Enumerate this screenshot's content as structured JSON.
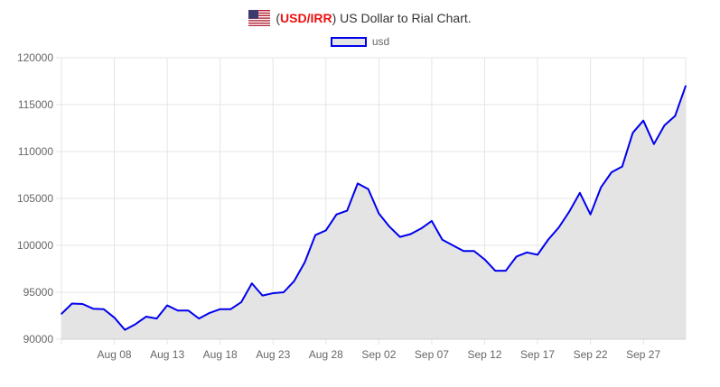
{
  "header": {
    "flag_icon": "us-flag-icon",
    "pair_open": "(",
    "pair": "USD/IRR",
    "pair_close": ")",
    "title_rest": " US Dollar to Rial Chart."
  },
  "colors": {
    "line": "#0000ee",
    "fill": "#e4e4e4",
    "grid": "#e5e5e5",
    "pair": "#ee1111"
  },
  "chart_data": {
    "type": "area",
    "legend": [
      "usd"
    ],
    "legend_position": "top-center",
    "grid": true,
    "ylim": [
      90000,
      120000
    ],
    "yticks": [
      90000,
      95000,
      100000,
      105000,
      110000,
      115000,
      120000
    ],
    "xtick_labels": [
      "Aug 08",
      "Aug 13",
      "Aug 18",
      "Aug 23",
      "Aug 28",
      "Sep 02",
      "Sep 07",
      "Sep 12",
      "Sep 17",
      "Sep 22",
      "Sep 27"
    ],
    "x": [
      "Aug 03",
      "Aug 04",
      "Aug 05",
      "Aug 06",
      "Aug 07",
      "Aug 08",
      "Aug 09",
      "Aug 10",
      "Aug 11",
      "Aug 12",
      "Aug 13",
      "Aug 14",
      "Aug 15",
      "Aug 16",
      "Aug 17",
      "Aug 18",
      "Aug 19",
      "Aug 20",
      "Aug 21",
      "Aug 22",
      "Aug 23",
      "Aug 24",
      "Aug 25",
      "Aug 26",
      "Aug 27",
      "Aug 28",
      "Aug 29",
      "Aug 30",
      "Aug 31",
      "Sep 01",
      "Sep 02",
      "Sep 03",
      "Sep 04",
      "Sep 05",
      "Sep 06",
      "Sep 07",
      "Sep 08",
      "Sep 09",
      "Sep 10",
      "Sep 11",
      "Sep 12",
      "Sep 13",
      "Sep 14",
      "Sep 15",
      "Sep 16",
      "Sep 17",
      "Sep 18",
      "Sep 19",
      "Sep 20",
      "Sep 21",
      "Sep 22",
      "Sep 23",
      "Sep 24",
      "Sep 25",
      "Sep 26",
      "Sep 27",
      "Sep 28",
      "Sep 29",
      "Sep 30",
      "Oct 01"
    ],
    "series": [
      {
        "name": "usd",
        "values": [
          92700,
          93800,
          93750,
          93250,
          93200,
          92300,
          91000,
          91600,
          92400,
          92200,
          93600,
          93050,
          93050,
          92200,
          92800,
          93200,
          93200,
          93950,
          95950,
          94650,
          94900,
          95000,
          96200,
          98200,
          101100,
          101600,
          103300,
          103700,
          106600,
          106000,
          103400,
          102000,
          100900,
          101200,
          101800,
          102600,
          100600,
          100000,
          99400,
          99400,
          98500,
          97300,
          97300,
          98800,
          99250,
          99000,
          100600,
          101900,
          103600,
          105600,
          103300,
          106200,
          107800,
          108400,
          112000,
          113300,
          110800,
          112800,
          113800,
          117000
        ]
      }
    ]
  }
}
